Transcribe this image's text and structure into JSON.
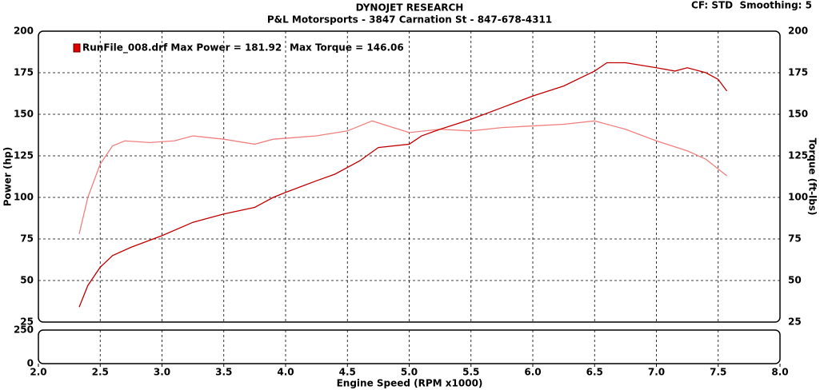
{
  "chart_data": {
    "type": "line",
    "title": "DYNOJET RESEARCH",
    "subtitle": "P&L Motorsports - 3847 Carnation St - 847-678-4311",
    "settings_text": "CF: STD  Smoothing: 5",
    "legend": [
      "RunFile_008.drf Max Power = 181.92",
      "Max Torque = 146.06"
    ],
    "x_label": "Engine Speed (RPM x1000)",
    "y_label": "Power (hp)",
    "y2_label": "Torque (ft-lbs)",
    "grid": true,
    "xlim": [
      2,
      8
    ],
    "xticks": [
      {
        "value": 2,
        "label": "2.0"
      },
      2.5,
      {
        "value": 3,
        "label": "3.0"
      },
      3.5,
      {
        "value": 4,
        "label": "4.0"
      },
      4.5,
      {
        "value": 5,
        "label": "5.0"
      },
      5.5,
      {
        "value": 6,
        "label": "6.0"
      },
      6.5,
      {
        "value": 7,
        "label": "7.0"
      },
      7.5,
      {
        "value": 8,
        "label": "8.0"
      }
    ],
    "ylim": [
      25,
      200
    ],
    "yticks": [
      25,
      50,
      75,
      100,
      125,
      150,
      175,
      200
    ],
    "y2lim": [
      25,
      200
    ],
    "y2ticks": [
      25,
      50,
      75,
      100,
      125,
      150,
      175,
      200
    ],
    "lower_ylim": [
      0,
      250
    ],
    "lower_yticks": [
      0,
      250
    ],
    "series": [
      {
        "color": "#c00000",
        "axis": "y",
        "x": [
          2.33,
          2.4,
          2.5,
          2.6,
          2.75,
          3.0,
          3.25,
          3.5,
          3.75,
          3.9,
          4.0,
          4.25,
          4.4,
          4.6,
          4.75,
          5.0,
          5.1,
          5.25,
          5.5,
          5.75,
          6.0,
          6.25,
          6.5,
          6.6,
          6.75,
          7.0,
          7.15,
          7.25,
          7.4,
          7.5,
          7.57
        ],
        "values": [
          34,
          47,
          58,
          65,
          70,
          77,
          85,
          90,
          94,
          100,
          103,
          110,
          114,
          122,
          130,
          132,
          137,
          141,
          147,
          154,
          161,
          167,
          176,
          181,
          181,
          178,
          176,
          178,
          175,
          171,
          164
        ]
      },
      {
        "color": "#f08080",
        "axis": "y2",
        "x": [
          2.33,
          2.4,
          2.5,
          2.6,
          2.7,
          2.9,
          3.1,
          3.25,
          3.5,
          3.75,
          3.9,
          4.25,
          4.5,
          4.7,
          5.0,
          5.25,
          5.5,
          5.75,
          6.0,
          6.25,
          6.5,
          6.75,
          7.0,
          7.25,
          7.4,
          7.57
        ],
        "values": [
          78,
          100,
          120,
          131,
          134,
          133,
          134,
          137,
          135,
          132,
          135,
          137,
          140,
          146,
          139,
          141,
          140,
          142,
          143,
          144,
          146,
          141,
          134,
          128,
          123,
          113
        ]
      }
    ]
  }
}
